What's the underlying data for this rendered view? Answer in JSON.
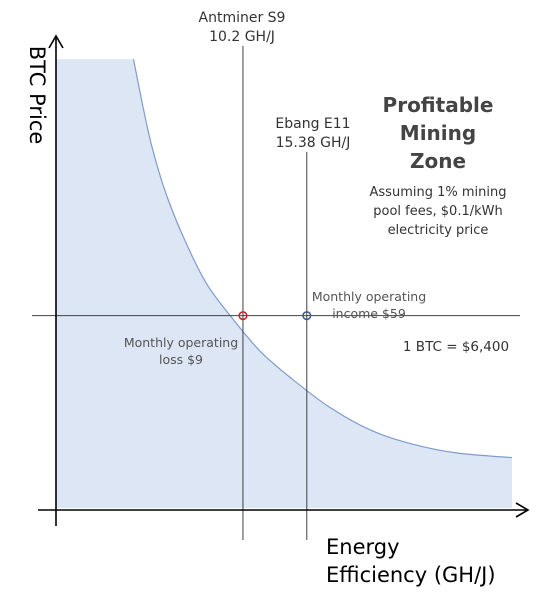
{
  "chart_data": {
    "type": "area",
    "title": "",
    "xlabel_line1": "Energy",
    "xlabel_line2": "Efficiency (GH/J)",
    "ylabel": "BTC Price",
    "grid": false,
    "legend": "none",
    "x_tick_labels": "none",
    "y_tick_labels": "none",
    "series": [
      {
        "name": "",
        "description_curve": "breakeven BTC price vs. energy efficiency (inverse curve)",
        "x_rel": [
          0.0,
          0.17,
          0.19,
          0.21,
          0.24,
          0.28,
          0.33,
          0.39,
          0.45,
          0.52,
          0.6,
          0.69,
          0.78,
          0.88,
          1.0
        ],
        "y_rel": [
          0.98,
          0.98,
          0.88,
          0.79,
          0.69,
          0.59,
          0.49,
          0.41,
          0.34,
          0.28,
          0.22,
          0.17,
          0.14,
          0.12,
          0.11
        ]
      }
    ],
    "colors": {
      "zone_fill": "#dde6f4",
      "curve": "#7f9ccd",
      "axis": "#000000",
      "ref_line": "#404040",
      "loss_marker": "#cc2222",
      "income_marker": "#3a5a8a"
    },
    "vertical_refs": [
      {
        "label_line1": "Antminer S9",
        "label_line2": "10.2 GH/J",
        "x_rel": 0.41
      },
      {
        "label_line1": "Ebang E11",
        "label_line2": "15.38 GH/J",
        "x_rel": 0.55
      }
    ],
    "horizontal_ref": {
      "label": "1 BTC = $6,400",
      "y_rel": 0.42
    },
    "annotations": {
      "zone_title": [
        "Profitable",
        "Mining",
        "Zone"
      ],
      "assumptions": [
        "Assuming 1% mining",
        "pool fees, $0.1/kWh",
        "electricity price"
      ],
      "income": [
        "Monthly operating",
        "income $59"
      ],
      "loss": [
        "Monthly operating",
        "loss $9"
      ]
    }
  }
}
